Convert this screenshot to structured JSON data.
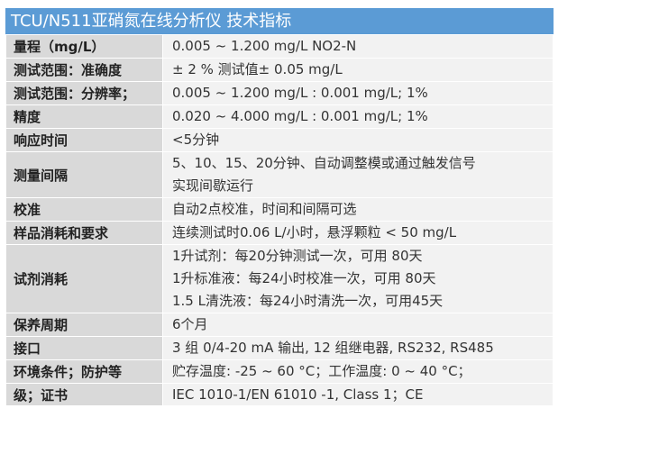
{
  "title": "TCU/N511亚硝氮在线分析仪 技术指标",
  "rows": [
    {
      "label": "量程（mg/L）",
      "values": [
        "0.005 ~ 1.200 mg/L NO2-N"
      ]
    },
    {
      "label": "测试范围：准确度",
      "values": [
        "± 2 % 测试值± 0.05 mg/L"
      ]
    },
    {
      "label": "测试范围：分辨率；",
      "values": [
        "0.005 ~ 1.200 mg/L : 0.001 mg/L; 1%"
      ]
    },
    {
      "label": "精度",
      "values": [
        "0.020 ~ 4.000 mg/L : 0.001 mg/L; 1%"
      ]
    },
    {
      "label": "响应时间",
      "values": [
        "<5分钟"
      ]
    },
    {
      "label": "测量间隔",
      "values": [
        "5、10、15、20分钟、自动调整模或通过触发信号",
        "实现间歇运行"
      ]
    },
    {
      "label": "校准",
      "values": [
        "自动2点校准，时间和间隔可选"
      ]
    },
    {
      "label": "样品消耗和要求",
      "values": [
        "连续测试时0.06 L/小时，悬浮颗粒 < 50 mg/L"
      ]
    },
    {
      "label": "试剂消耗",
      "values": [
        "1升试剂：每20分钟测试一次，可用 80天",
        "1升标准液：每24小时校准一次，可用 80天",
        "1.5 L清洗液：每24小时清洗一次，可用45天"
      ]
    },
    {
      "label": "保养周期",
      "values": [
        "6个月"
      ]
    },
    {
      "label": "接口",
      "values": [
        "3 组 0/4-20 mA 输出, 12 组继电器, RS232, RS485"
      ]
    },
    {
      "label": "环境条件；防护等",
      "values": [
        "贮存温度: -25 ~ 60 °C；工作温度: 0 ~ 40 °C；"
      ]
    },
    {
      "label": "级；证书",
      "values": [
        "IEC 1010-1/EN 61010 -1, Class 1；CE"
      ]
    }
  ]
}
